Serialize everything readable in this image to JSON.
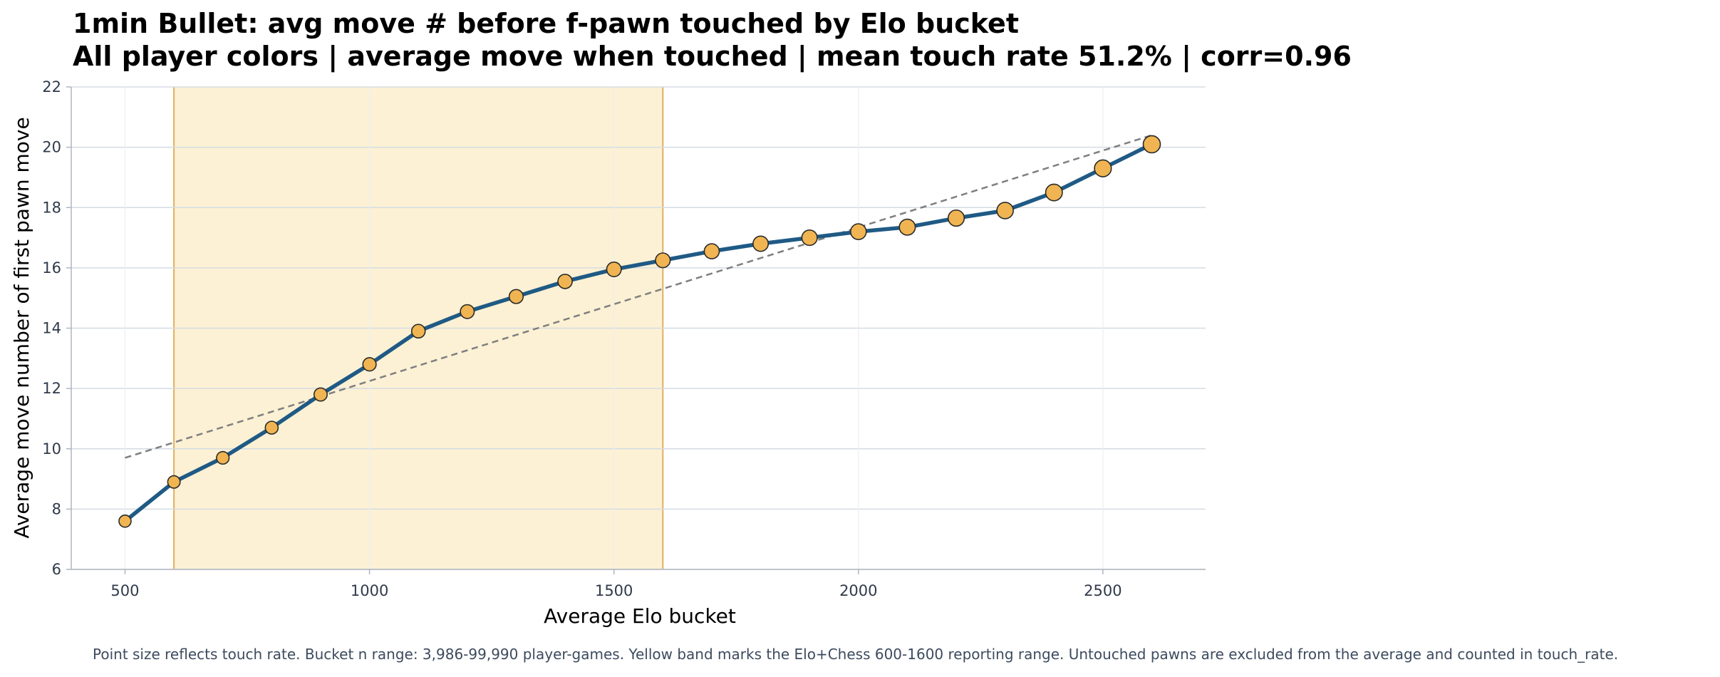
{
  "chart_data": {
    "type": "line",
    "title": "1min Bullet: avg move # before f-pawn touched by Elo bucket",
    "subtitle": "All player colors | average move when touched | mean touch rate 51.2% | corr=0.96",
    "xlabel": "Average Elo bucket",
    "ylabel": "Average move number of first pawn move",
    "xlim": [
      390,
      2710
    ],
    "ylim": [
      6,
      22
    ],
    "x_ticks": [
      500,
      1000,
      1500,
      2000,
      2500
    ],
    "y_ticks": [
      6,
      8,
      10,
      12,
      14,
      16,
      18,
      20,
      22
    ],
    "grid": true,
    "x": [
      500,
      600,
      700,
      800,
      900,
      1000,
      1100,
      1200,
      1300,
      1400,
      1500,
      1600,
      1700,
      1800,
      1900,
      2000,
      2100,
      2200,
      2300,
      2400,
      2500,
      2600
    ],
    "series": [
      {
        "values": [
          7.6,
          8.9,
          9.7,
          10.7,
          11.8,
          12.8,
          13.9,
          14.55,
          15.05,
          15.55,
          15.95,
          16.25,
          16.55,
          16.8,
          17.0,
          17.2,
          17.35,
          17.65,
          17.9,
          18.5,
          19.3,
          20.1
        ],
        "color": "#1f5a85",
        "marker_color": "#f0b552"
      }
    ],
    "trend_line": {
      "x": [
        500,
        2600
      ],
      "y": [
        9.7,
        20.4
      ],
      "color": "#7f7f7f",
      "style": "dashed"
    },
    "band": {
      "x_range": [
        600,
        1600
      ],
      "fill": "#fcf1d4",
      "edge": "#e0b060"
    },
    "footnote": "Point size reflects touch rate. Bucket n range: 3,986-99,990 player-games. Yellow band marks the Elo+Chess 600-1600 reporting range. Untouched pawns are excluded from the average and counted in touch_rate."
  }
}
